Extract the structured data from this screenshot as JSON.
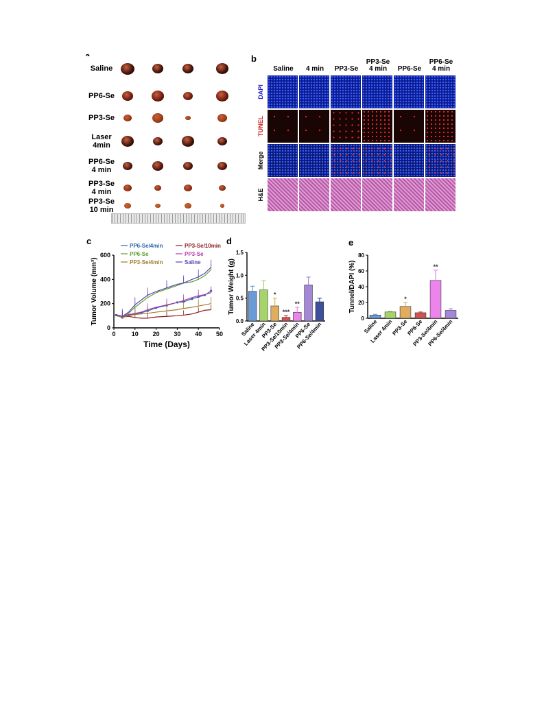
{
  "panel_a": {
    "letter": "a",
    "rows": [
      {
        "label": "Saline",
        "sizes": [
          10,
          8,
          8,
          9
        ],
        "color": "#3a0f08"
      },
      {
        "label": "PP6-Se",
        "sizes": [
          8,
          9,
          7,
          9
        ],
        "color": "#6b1a0c"
      },
      {
        "label": "PP3-Se",
        "sizes": [
          6,
          8,
          4,
          7
        ],
        "color": "#9a3a12"
      },
      {
        "label": "Laser\n4min",
        "sizes": [
          9,
          7,
          9,
          7
        ],
        "color": "#3d1008"
      },
      {
        "label": "PP6-Se\n4 min",
        "sizes": [
          7,
          8,
          7,
          7
        ],
        "color": "#4a140a"
      },
      {
        "label": "PP3-Se\n4 min",
        "sizes": [
          6,
          5,
          6,
          5
        ],
        "color": "#8a2e10"
      },
      {
        "label": "PP3-Se\n10 min",
        "sizes": [
          5,
          4,
          5,
          3
        ],
        "color": "#b4501a"
      }
    ]
  },
  "panel_b": {
    "letter": "b",
    "columns": [
      "Saline",
      "4 min",
      "PP3-Se",
      "PP3-Se\n4 min",
      "PP6-Se",
      "PP6-Se\n4 min"
    ],
    "stains": [
      {
        "label": "DAPI",
        "color": "#2222cc",
        "bg": "#0a1a8a"
      },
      {
        "label": "TUNEL",
        "color": "#cc2222",
        "bg": "#1a0505"
      },
      {
        "label": "Merge",
        "color": "#000000",
        "bg": "#0a1870"
      },
      {
        "label": "H&E",
        "color": "#000000",
        "bg": "#c86fb8"
      }
    ]
  },
  "chart_c": {
    "letter": "c",
    "chart_data": {
      "type": "line",
      "xlabel": "Time (Days)",
      "ylabel": "Tumor Volume (mm³)",
      "xlim": [
        0,
        50
      ],
      "ylim": [
        0,
        600
      ],
      "xticks": [
        "0",
        "10",
        "20",
        "30",
        "40",
        "50"
      ],
      "yticks": [
        "0",
        "200",
        "400",
        "600"
      ],
      "x": [
        1,
        4,
        7,
        10,
        13,
        16,
        20,
        25,
        30,
        33,
        37,
        40,
        43,
        46
      ],
      "series": [
        {
          "name": "PP6-Se/4min",
          "color": "#2f62a8",
          "values": [
            105,
            85,
            105,
            115,
            125,
            140,
            165,
            185,
            210,
            215,
            240,
            255,
            270,
            305
          ]
        },
        {
          "name": "PP3-Se/10min",
          "color": "#8b1a1a",
          "values": [
            100,
            90,
            95,
            85,
            80,
            80,
            90,
            95,
            100,
            105,
            115,
            130,
            145,
            150
          ]
        },
        {
          "name": "PP6-Se",
          "color": "#5aa02c",
          "values": [
            110,
            90,
            120,
            170,
            210,
            250,
            290,
            320,
            350,
            370,
            380,
            400,
            430,
            480
          ]
        },
        {
          "name": "PP3-Se",
          "color": "#b03cae",
          "values": [
            110,
            90,
            110,
            120,
            130,
            150,
            170,
            190,
            210,
            225,
            250,
            265,
            275,
            290
          ]
        },
        {
          "name": "PP3-Se/4min",
          "color": "#a07a28",
          "values": [
            105,
            85,
            100,
            110,
            115,
            120,
            130,
            140,
            150,
            160,
            170,
            180,
            190,
            200
          ]
        },
        {
          "name": "Saline",
          "color": "#5b3fb8",
          "values": [
            110,
            95,
            130,
            190,
            230,
            270,
            300,
            330,
            360,
            370,
            400,
            420,
            450,
            500
          ]
        }
      ]
    }
  },
  "chart_d": {
    "letter": "d",
    "chart_data": {
      "type": "bar",
      "ylabel": "Tumor Weight (g)",
      "ylim": [
        0,
        1.5
      ],
      "yticks": [
        "0.0",
        "0.5",
        "1.0",
        "1.5"
      ],
      "categories": [
        "Saline",
        "Laser 4min",
        "PP3-Se",
        "PP3-Se/10min",
        "PP3-Se/4min",
        "PP6-Se",
        "PP6-Se/4min"
      ],
      "values": [
        0.65,
        0.68,
        0.33,
        0.08,
        0.19,
        0.79,
        0.42
      ],
      "errors": [
        0.11,
        0.2,
        0.17,
        0.04,
        0.11,
        0.17,
        0.08
      ],
      "significance": [
        "",
        "",
        "*",
        "***",
        "**",
        "",
        ""
      ],
      "colors": [
        "#6b9bd6",
        "#a6d46a",
        "#e0ad5e",
        "#d35353",
        "#ec84ec",
        "#a487d6",
        "#3e4f9c"
      ]
    }
  },
  "chart_e": {
    "letter": "e",
    "chart_data": {
      "type": "bar",
      "ylabel": "Tunnel/DAPI (%)",
      "ylim": [
        0,
        80
      ],
      "yticks": [
        "0",
        "20",
        "40",
        "60",
        "80"
      ],
      "categories": [
        "Saline",
        "Laser 4min",
        "PP3-Se",
        "PP6-Se",
        "PP3-Se/4min",
        "PP6-Se/4min"
      ],
      "values": [
        4,
        8,
        15,
        7,
        48,
        10
      ],
      "errors": [
        1,
        1,
        5,
        1,
        13,
        2
      ],
      "significance": [
        "",
        "",
        "*",
        "",
        "**",
        ""
      ],
      "colors": [
        "#6b9bd6",
        "#a6d46a",
        "#e0ad5e",
        "#d35353",
        "#ec84ec",
        "#a487d6"
      ]
    }
  }
}
